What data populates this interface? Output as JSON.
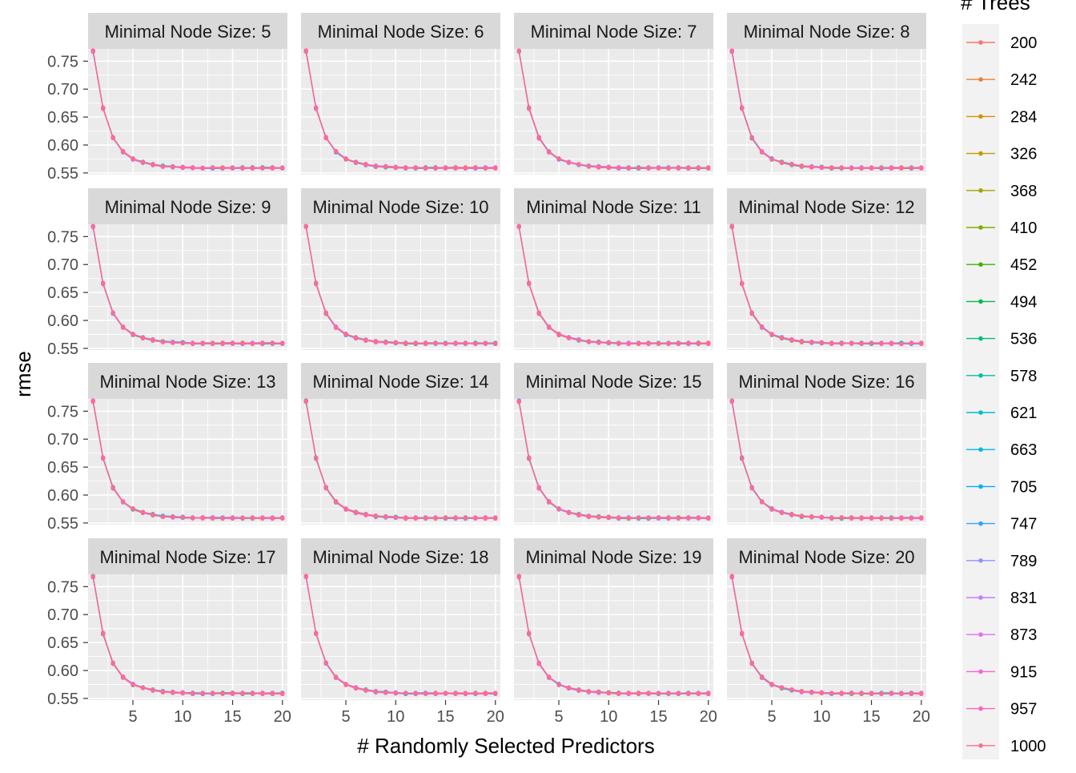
{
  "chart_data": {
    "type": "line",
    "facet_label_prefix": "Minimal Node Size: ",
    "facets": [
      5,
      6,
      7,
      8,
      9,
      10,
      11,
      12,
      13,
      14,
      15,
      16,
      17,
      18,
      19,
      20
    ],
    "xlabel": "# Randomly Selected Predictors",
    "ylabel": "rmse",
    "x": [
      1,
      2,
      3,
      4,
      5,
      6,
      7,
      8,
      9,
      10,
      11,
      12,
      13,
      14,
      15,
      16,
      17,
      18,
      19,
      20
    ],
    "rmse": [
      0.768,
      0.666,
      0.613,
      0.588,
      0.575,
      0.569,
      0.565,
      0.562,
      0.561,
      0.56,
      0.559,
      0.559,
      0.559,
      0.559,
      0.559,
      0.559,
      0.559,
      0.559,
      0.559,
      0.559
    ],
    "xlim": [
      0.5,
      20.5
    ],
    "ylim": [
      0.547,
      0.772
    ],
    "x_ticks": [
      5,
      10,
      15,
      20
    ],
    "x_tick_labels": [
      "5",
      "10",
      "15",
      "20"
    ],
    "y_ticks": [
      0.55,
      0.6,
      0.65,
      0.7,
      0.75
    ],
    "y_tick_labels": [
      "0.55",
      "0.60",
      "0.65",
      "0.70",
      "0.75"
    ],
    "grid": true,
    "legend": {
      "title": "# Trees",
      "position": "right",
      "entries": [
        "200",
        "242",
        "284",
        "326",
        "368",
        "410",
        "452",
        "494",
        "536",
        "578",
        "621",
        "663",
        "705",
        "747",
        "789",
        "831",
        "873",
        "915",
        "957",
        "1000"
      ]
    },
    "series_colors": [
      "#F8766D",
      "#EA8331",
      "#D89000",
      "#C09B00",
      "#A3A500",
      "#7CAE00",
      "#39B600",
      "#00BB4E",
      "#00BF7D",
      "#00C1A3",
      "#00BFC4",
      "#00BAE0",
      "#00B0F6",
      "#35A2FF",
      "#9590FF",
      "#C77CFF",
      "#E76BF3",
      "#FA62DB",
      "#FF62BC",
      "#FF6C91"
    ],
    "colors": {
      "panel_background": "#EBEBEB",
      "grid": "#FFFFFF",
      "strip_background": "#D9D9D9",
      "axis_text": "#4D4D4D"
    }
  }
}
